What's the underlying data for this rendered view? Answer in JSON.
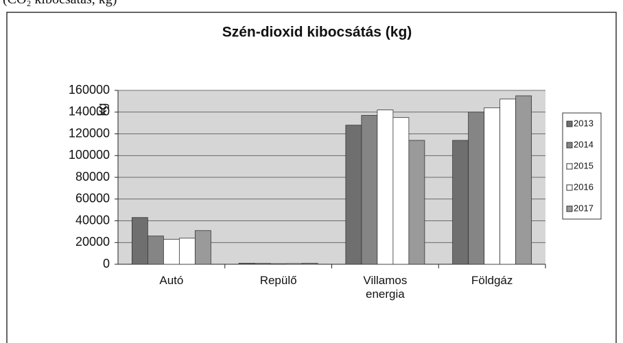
{
  "caption": "(CO₂ kibocsátás, kg)",
  "chart_data": {
    "type": "bar",
    "title": "Szén-dioxid kibocsátás (kg)",
    "y_label": "kg",
    "categories": [
      "Autó",
      "Repülő",
      "Villamos energia",
      "Földgáz"
    ],
    "series": [
      {
        "name": "2013",
        "color": "#6f6f6f",
        "values": [
          43000,
          1000,
          128000,
          114000
        ]
      },
      {
        "name": "2014",
        "color": "#858585",
        "values": [
          26000,
          800,
          137000,
          140000
        ]
      },
      {
        "name": "2015",
        "color": "#ffffff",
        "values": [
          23000,
          600,
          142000,
          144000
        ]
      },
      {
        "name": "2016",
        "color": "#ffffff",
        "values": [
          24000,
          700,
          135000,
          152000
        ]
      },
      {
        "name": "2017",
        "color": "#9a9a9a",
        "values": [
          31000,
          900,
          114000,
          155000
        ]
      }
    ],
    "ylim": [
      0,
      160000
    ],
    "yticks": [
      0,
      20000,
      40000,
      60000,
      80000,
      100000,
      120000,
      140000,
      160000
    ],
    "grid": true,
    "legend": "right"
  }
}
